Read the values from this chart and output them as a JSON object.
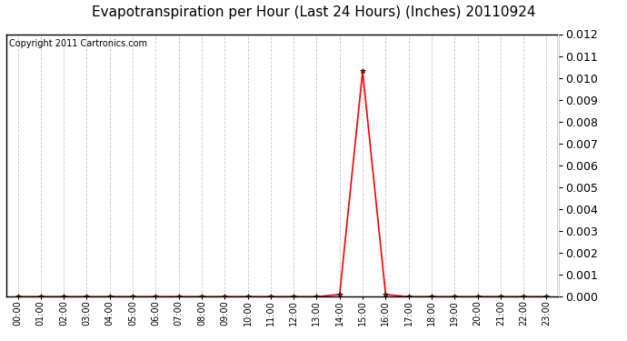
{
  "title": "Evapotranspiration per Hour (Last 24 Hours) (Inches) 20110924",
  "copyright": "Copyright 2011 Cartronics.com",
  "hours": [
    "00:00",
    "01:00",
    "02:00",
    "03:00",
    "04:00",
    "05:00",
    "06:00",
    "07:00",
    "08:00",
    "09:00",
    "10:00",
    "11:00",
    "12:00",
    "13:00",
    "14:00",
    "15:00",
    "16:00",
    "17:00",
    "18:00",
    "19:00",
    "20:00",
    "21:00",
    "22:00",
    "23:00"
  ],
  "values": [
    0.0,
    0.0,
    0.0,
    0.0,
    0.0,
    0.0,
    0.0,
    0.0,
    0.0,
    0.0,
    0.0,
    0.0,
    0.0,
    0.0,
    0.0001,
    0.0103,
    0.0001,
    0.0,
    0.0,
    0.0,
    0.0,
    0.0,
    0.0,
    0.0
  ],
  "ylim": [
    0.0,
    0.012
  ],
  "yticks": [
    0.0,
    0.001,
    0.002,
    0.003,
    0.004,
    0.005,
    0.006,
    0.007,
    0.008,
    0.009,
    0.01,
    0.011,
    0.012
  ],
  "line_color": "#ff0000",
  "marker": "*",
  "marker_size": 4,
  "background_color": "#ffffff",
  "grid_color": "#c8c8c8",
  "title_fontsize": 11,
  "copyright_fontsize": 7,
  "tick_fontsize": 7,
  "ytick_fontsize": 9
}
